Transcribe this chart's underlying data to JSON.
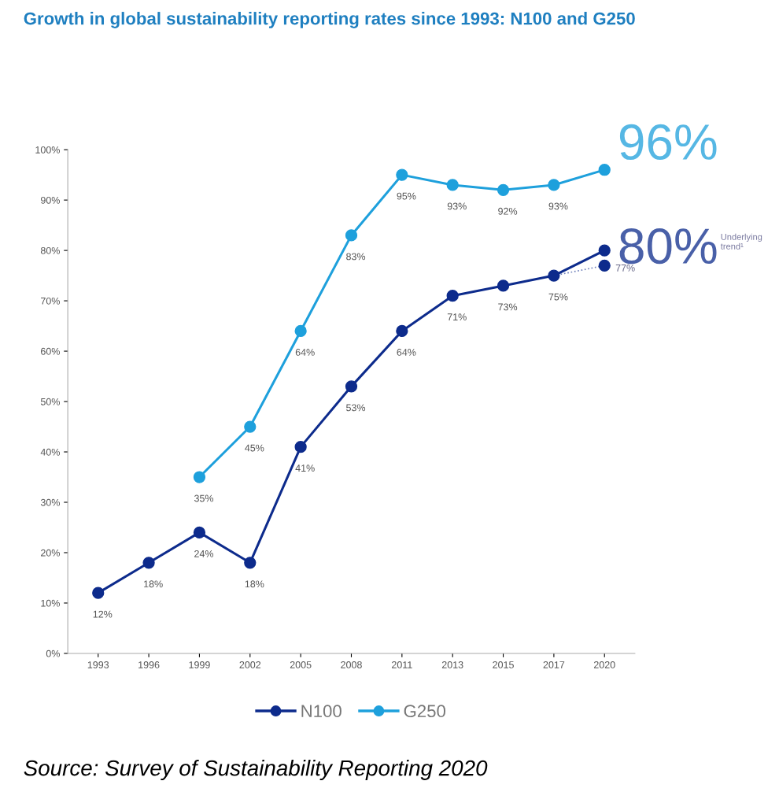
{
  "chart_data": {
    "type": "line",
    "title": "Growth in global sustainability reporting rates since 1993: N100 and G250",
    "categories": [
      "1993",
      "1996",
      "1999",
      "2002",
      "2005",
      "2008",
      "2011",
      "2013",
      "2015",
      "2017",
      "2020"
    ],
    "series": [
      {
        "name": "N100",
        "color": "#0d2b8c",
        "values": [
          12,
          18,
          24,
          18,
          41,
          53,
          64,
          71,
          73,
          75,
          80
        ],
        "value_labels": [
          "12%",
          "18%",
          "24%",
          "18%",
          "41%",
          "53%",
          "64%",
          "71%",
          "73%",
          "75%",
          "80%"
        ]
      },
      {
        "name": "G250",
        "color": "#1ea0dc",
        "values": [
          null,
          null,
          35,
          45,
          64,
          83,
          95,
          93,
          92,
          93,
          96
        ],
        "value_labels": [
          null,
          null,
          "35%",
          "45%",
          "64%",
          "83%",
          "95%",
          "93%",
          "92%",
          "93%",
          "96%"
        ]
      },
      {
        "color": "#0d2b8c",
        "line_style": "dotted",
        "values": [
          null,
          null,
          null,
          null,
          null,
          null,
          null,
          null,
          null,
          75,
          77
        ],
        "value_labels": [
          null,
          null,
          null,
          null,
          null,
          null,
          null,
          null,
          null,
          null,
          "77%"
        ]
      }
    ],
    "ylim": [
      0,
      100
    ],
    "yticks": [
      {
        "value": 0,
        "label": "0%"
      },
      {
        "value": 10,
        "label": "10%"
      },
      {
        "value": 20,
        "label": "20%"
      },
      {
        "value": 30,
        "label": "30%"
      },
      {
        "value": 40,
        "label": "40%"
      },
      {
        "value": 50,
        "label": "50%"
      },
      {
        "value": 60,
        "label": "60%"
      },
      {
        "value": 70,
        "label": "70%"
      },
      {
        "value": 80,
        "label": "80%"
      },
      {
        "value": 90,
        "label": "90%"
      },
      {
        "value": 100,
        "label": "100%"
      }
    ],
    "grid": false,
    "legend": "bottom",
    "marker": "circle",
    "line_style": "solid",
    "annotations": [
      "Underlying trend¹",
      "Source: Survey of Sustainability Reporting 2020"
    ]
  }
}
